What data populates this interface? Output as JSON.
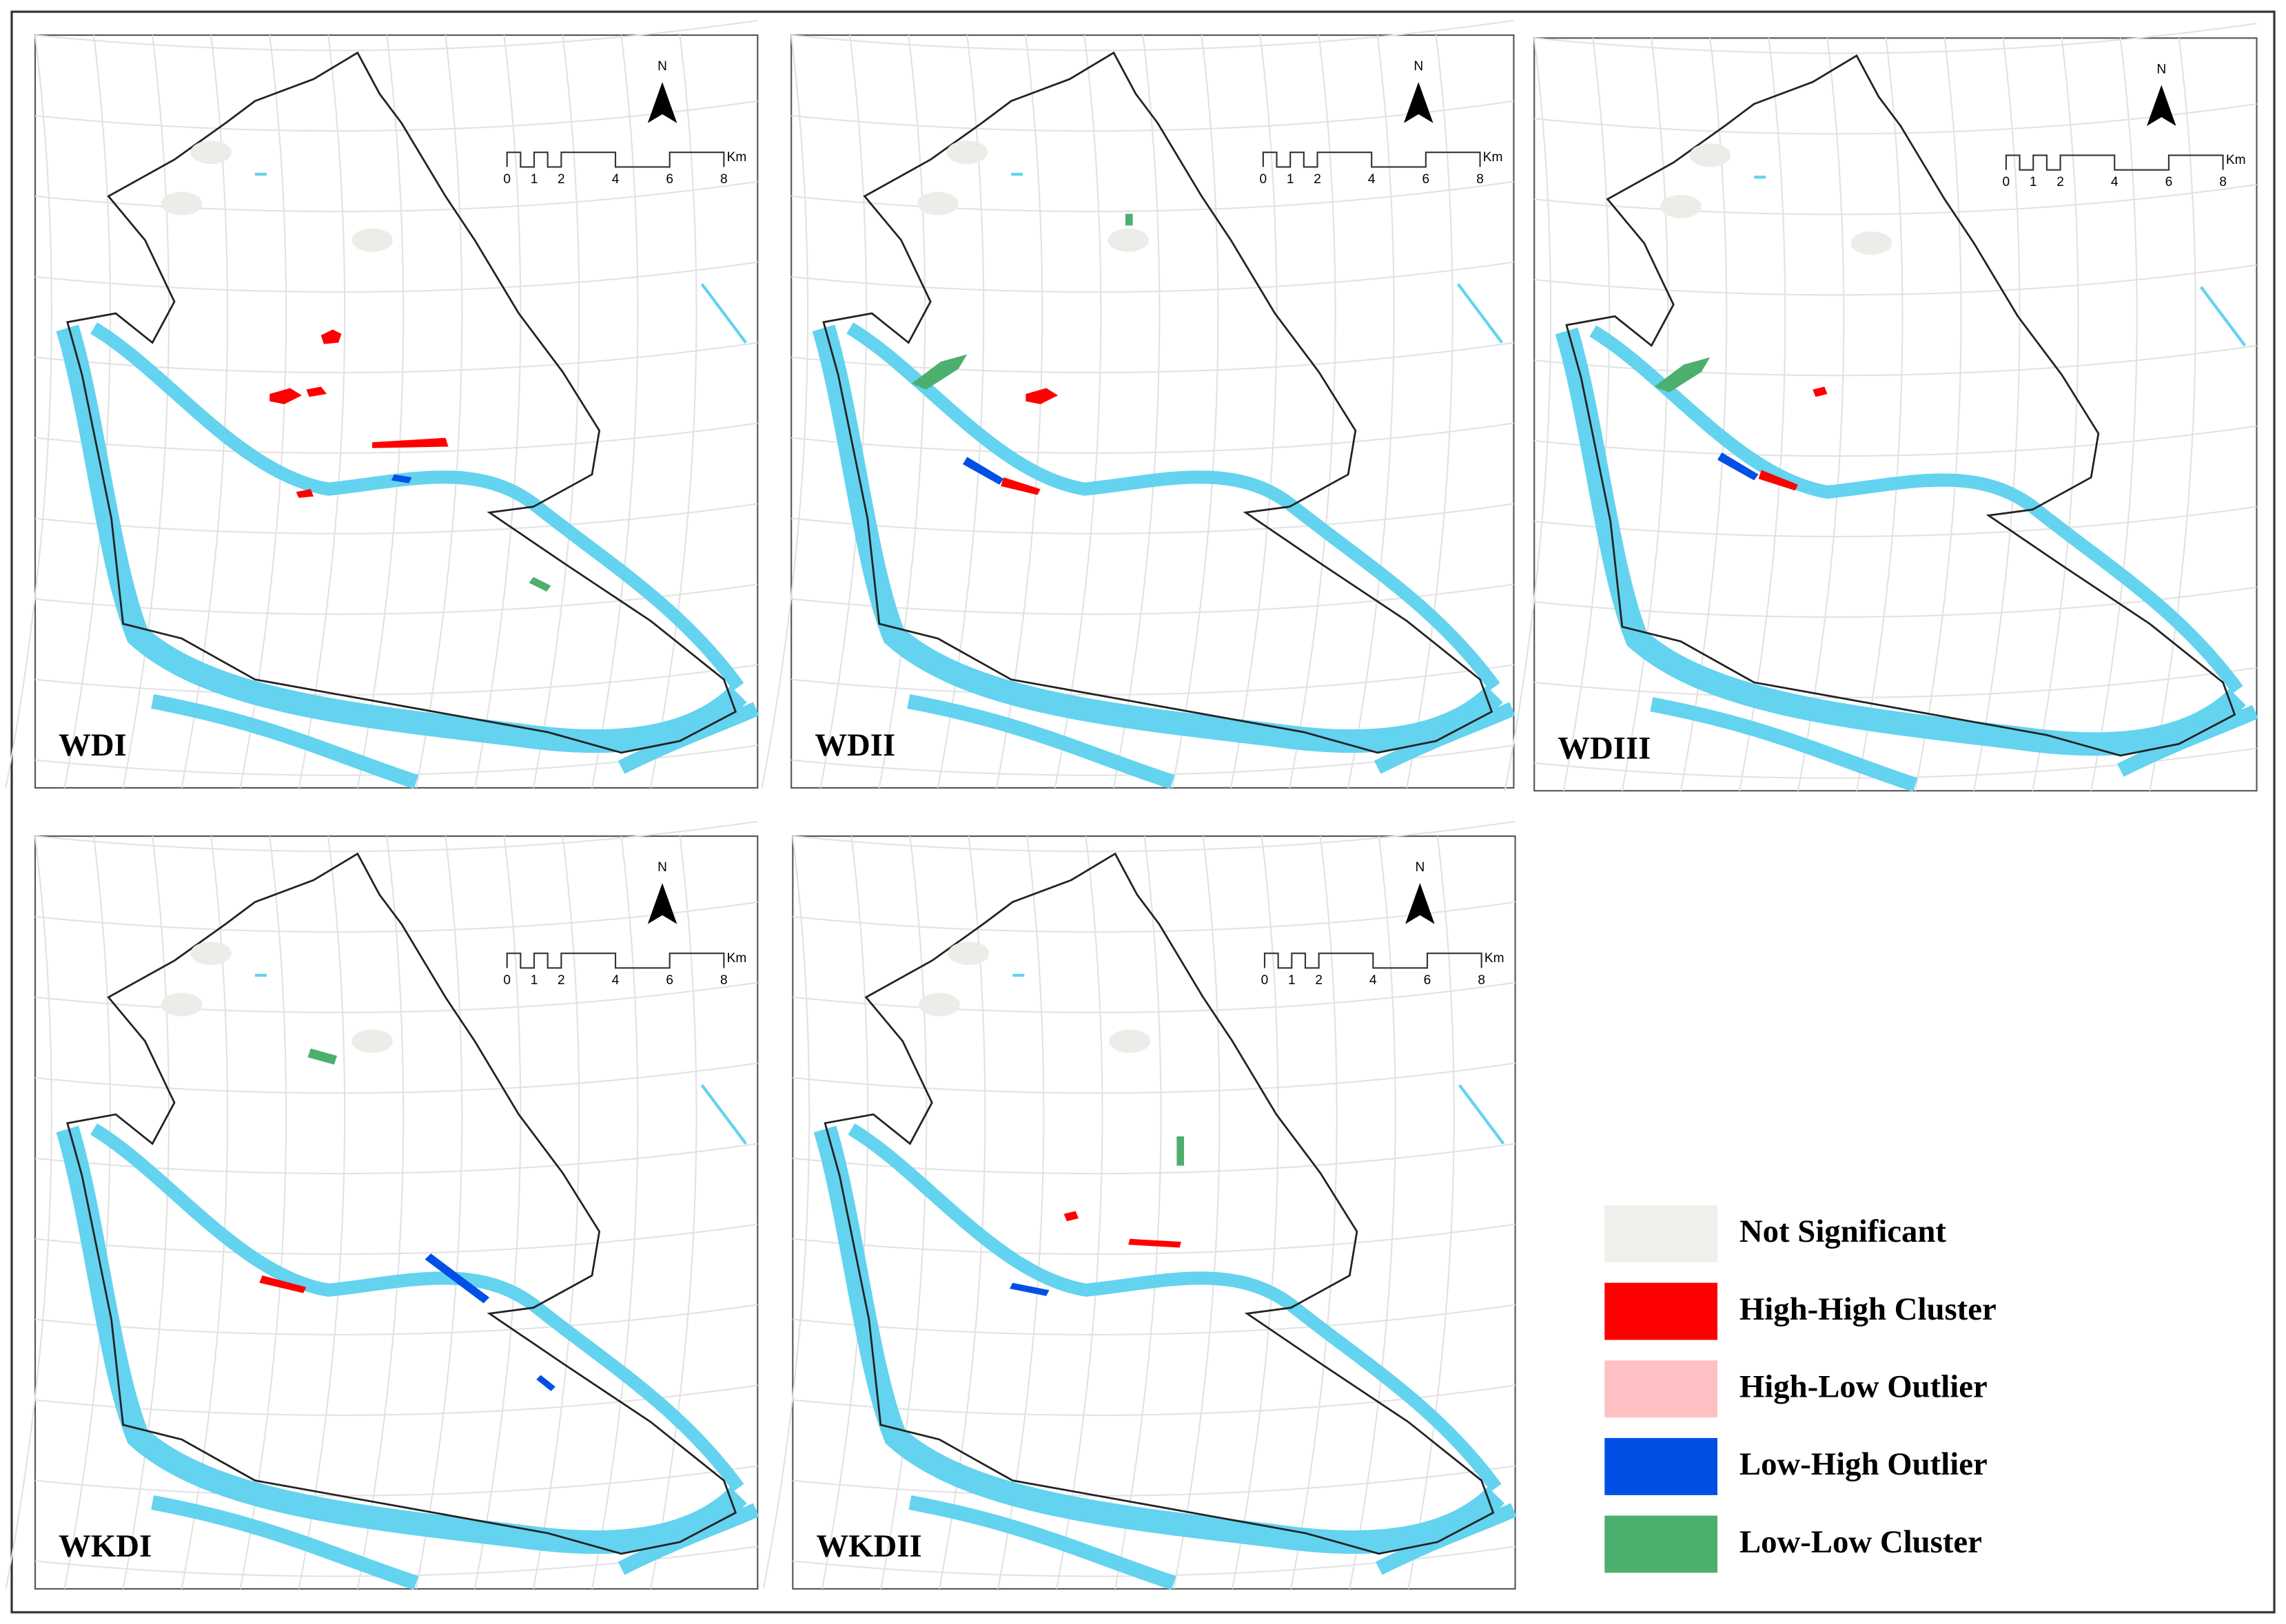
{
  "panels": [
    {
      "label": "WDI"
    },
    {
      "label": "WDII"
    },
    {
      "label": "WDIII"
    },
    {
      "label": "WKDI"
    },
    {
      "label": "WKDII"
    }
  ],
  "north_label": "N",
  "scale_bar": {
    "ticks": [
      0,
      1,
      2,
      4,
      6,
      8
    ],
    "unit": "Km"
  },
  "legend": [
    {
      "label": "Not Significant",
      "color": "#efefec"
    },
    {
      "label": "High-High Cluster",
      "color": "#ff0000"
    },
    {
      "label": "High-Low Outlier",
      "color": "#ffc0c4"
    },
    {
      "label": "Low-High Outlier",
      "color": "#0050e6"
    },
    {
      "label": "Low-Low Cluster",
      "color": "#4caf6e"
    }
  ]
}
